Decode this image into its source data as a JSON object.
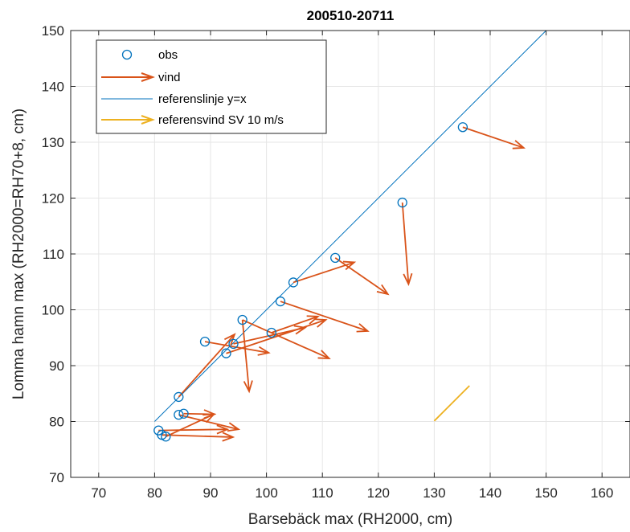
{
  "chart_data": {
    "type": "scatter",
    "title": "200510-20711",
    "xlabel": "Barsebäck max (RH2000, cm)",
    "ylabel": "Lomma hamn max (RH2000=RH70+8, cm)",
    "xlim": [
      65,
      165
    ],
    "ylim": [
      70,
      150
    ],
    "xticks": [
      70,
      80,
      90,
      100,
      110,
      120,
      130,
      140,
      150,
      160
    ],
    "yticks": [
      70,
      80,
      90,
      100,
      110,
      120,
      130,
      140,
      150
    ],
    "grid": true,
    "legend_position": "top-left",
    "legend": [
      "obs",
      "vind",
      "referenslinje y=x",
      "referensvind SV 10 m/s"
    ],
    "colors": {
      "obs": "#0072BD",
      "vind": "#D95319",
      "reference_line": "#0072BD",
      "reference_wind": "#EDB120"
    },
    "obs": [
      {
        "x": 80.7,
        "y": 78.4
      },
      {
        "x": 81.3,
        "y": 77.6
      },
      {
        "x": 82.0,
        "y": 77.3
      },
      {
        "x": 84.3,
        "y": 84.4
      },
      {
        "x": 84.3,
        "y": 81.2
      },
      {
        "x": 85.2,
        "y": 81.4
      },
      {
        "x": 89.0,
        "y": 94.3
      },
      {
        "x": 92.8,
        "y": 92.2
      },
      {
        "x": 94.1,
        "y": 93.9
      },
      {
        "x": 95.7,
        "y": 98.2
      },
      {
        "x": 100.9,
        "y": 95.9
      },
      {
        "x": 102.5,
        "y": 101.5
      },
      {
        "x": 104.8,
        "y": 104.9
      },
      {
        "x": 112.3,
        "y": 109.3
      },
      {
        "x": 124.3,
        "y": 119.2
      },
      {
        "x": 135.1,
        "y": 132.7
      }
    ],
    "wind": [
      {
        "x": 80.7,
        "y": 78.4,
        "x_end": 93.0,
        "y_end": 78.6
      },
      {
        "x": 81.3,
        "y": 77.6,
        "x_end": 94.0,
        "y_end": 77.2
      },
      {
        "x": 82.0,
        "y": 77.3,
        "x_end": 90.6,
        "y_end": 81.3
      },
      {
        "x": 84.3,
        "y": 84.4,
        "x_end": 94.3,
        "y_end": 95.6
      },
      {
        "x": 84.3,
        "y": 81.2,
        "x_end": 95.0,
        "y_end": 78.6
      },
      {
        "x": 85.2,
        "y": 81.4,
        "x_end": 90.7,
        "y_end": 81.3
      },
      {
        "x": 89.0,
        "y": 94.3,
        "x_end": 100.4,
        "y_end": 92.3
      },
      {
        "x": 92.8,
        "y": 92.2,
        "x_end": 110.6,
        "y_end": 98.2
      },
      {
        "x": 94.1,
        "y": 93.9,
        "x_end": 106.9,
        "y_end": 96.8
      },
      {
        "x": 95.7,
        "y": 98.2,
        "x_end": 111.2,
        "y_end": 91.3
      },
      {
        "x": 95.7,
        "y": 98.2,
        "x_end": 96.9,
        "y_end": 85.4
      },
      {
        "x": 100.9,
        "y": 95.9,
        "x_end": 109.2,
        "y_end": 98.8
      },
      {
        "x": 102.5,
        "y": 101.5,
        "x_end": 118.1,
        "y_end": 96.2
      },
      {
        "x": 104.8,
        "y": 104.9,
        "x_end": 115.7,
        "y_end": 108.5
      },
      {
        "x": 112.3,
        "y": 109.3,
        "x_end": 121.7,
        "y_end": 102.8
      },
      {
        "x": 124.3,
        "y": 119.2,
        "x_end": 125.4,
        "y_end": 104.6
      },
      {
        "x": 135.1,
        "y": 132.7,
        "x_end": 146.0,
        "y_end": 129.0
      }
    ],
    "reference_line": {
      "x": [
        80,
        150
      ],
      "y": [
        80,
        150
      ]
    },
    "reference_wind": {
      "x": 130.0,
      "y": 80.1,
      "x_end": 136.3,
      "y_end": 86.4
    }
  }
}
